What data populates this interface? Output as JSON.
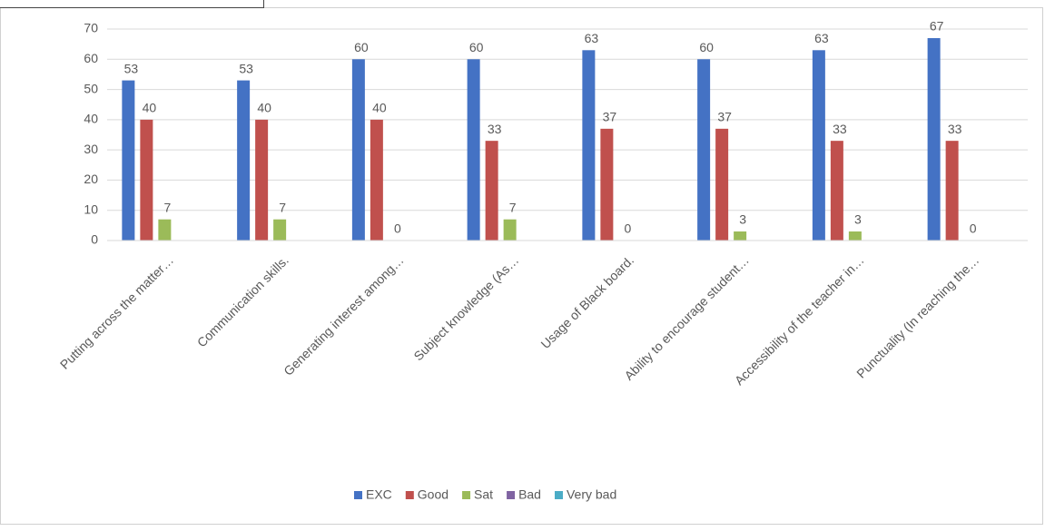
{
  "chart_data": {
    "type": "bar",
    "categories": [
      "Putting across the matter…",
      "Communication skills.",
      "Generating interest among…",
      "Subject knowledge (As…",
      "Usage of Black board.",
      "Ability to encourage student…",
      "Accessibility of the teacher in…",
      "Punctuality (In reaching the…"
    ],
    "series": [
      {
        "name": "EXC",
        "color": "#4472c4",
        "values": [
          53,
          53,
          60,
          60,
          63,
          60,
          63,
          67
        ]
      },
      {
        "name": "Good",
        "color": "#c0504d",
        "values": [
          40,
          40,
          40,
          33,
          37,
          37,
          33,
          33
        ]
      },
      {
        "name": "Sat",
        "color": "#9bbb59",
        "values": [
          7,
          7,
          0,
          7,
          0,
          3,
          3,
          0
        ]
      },
      {
        "name": "Bad",
        "color": "#8064a2",
        "values": [
          null,
          null,
          null,
          null,
          null,
          null,
          null,
          null
        ]
      },
      {
        "name": "Very bad",
        "color": "#4bacc6",
        "values": [
          null,
          null,
          null,
          null,
          null,
          null,
          null,
          null
        ]
      }
    ],
    "ylim": [
      0,
      70
    ],
    "yticks": [
      0,
      10,
      20,
      30,
      40,
      50,
      60,
      70
    ],
    "grid": true,
    "legend": "bottom"
  }
}
